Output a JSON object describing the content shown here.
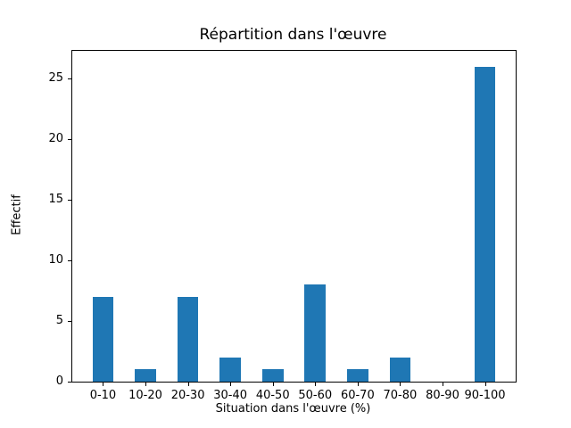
{
  "chart_data": {
    "type": "bar",
    "title": "Répartition dans l'œuvre",
    "xlabel": "Situation dans l'œuvre (%)",
    "ylabel": "Effectif",
    "categories": [
      "0-10",
      "10-20",
      "20-30",
      "30-40",
      "40-50",
      "50-60",
      "60-70",
      "70-80",
      "80-90",
      "90-100"
    ],
    "values": [
      7,
      1,
      7,
      2,
      1,
      8,
      1,
      2,
      0,
      26
    ],
    "yticks": [
      0,
      5,
      10,
      15,
      20,
      25
    ],
    "ylim": [
      0,
      27.3
    ],
    "bar_color": "#1f77b4",
    "grid": false,
    "legend": "none",
    "layout_hints": {
      "bar_width_units": 0.5,
      "x_axis_total_units": 10.45,
      "x_axis_left_offset_units": 0.725
    }
  }
}
